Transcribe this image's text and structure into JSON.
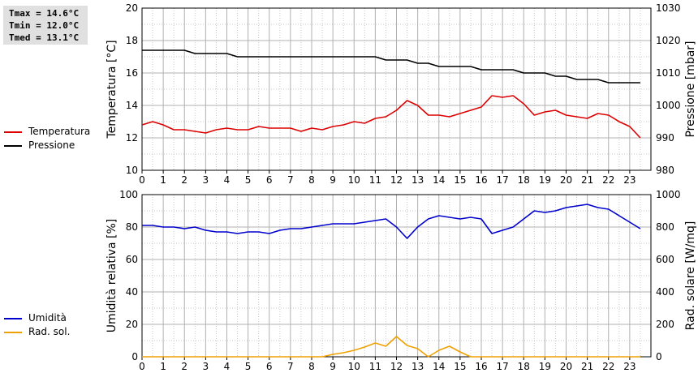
{
  "stats": {
    "tmax": "Tmax = 14.6°C",
    "tmin": "Tmin = 12.0°C",
    "tmed": "Tmed = 13.1°C"
  },
  "colors": {
    "temperatura": "#dd0000",
    "pressione": "#000000",
    "umidita": "#0000cc",
    "radiazione": "#f0a000"
  },
  "chart_data": [
    {
      "type": "line",
      "xlim": [
        0,
        24
      ],
      "xticks": [
        "0",
        "1",
        "2",
        "3",
        "4",
        "5",
        "6",
        "7",
        "8",
        "9",
        "10",
        "11",
        "12",
        "13",
        "14",
        "15",
        "16",
        "17",
        "18",
        "19",
        "20",
        "21",
        "22",
        "23"
      ],
      "ylabel": "Temperatura [°C]",
      "ylim": [
        10,
        20
      ],
      "yticks": [
        "10",
        "12",
        "14",
        "16",
        "18",
        "20"
      ],
      "y2label": "Pressione [mbar]",
      "y2lim": [
        980,
        1030
      ],
      "y2ticks": [
        "980",
        "990",
        "1000",
        "1010",
        "1020",
        "1030"
      ],
      "grid": true,
      "legend": "left",
      "series": [
        {
          "name": "Temperatura",
          "axis": "left",
          "x": [
            0,
            0.5,
            1,
            1.5,
            2,
            2.5,
            3,
            3.5,
            4,
            4.5,
            5,
            5.5,
            6,
            6.5,
            7,
            7.5,
            8,
            8.5,
            9,
            9.5,
            10,
            10.5,
            11,
            11.5,
            12,
            12.5,
            13,
            13.5,
            14,
            14.5,
            15,
            15.5,
            16,
            16.5,
            17,
            17.5,
            18,
            18.5,
            19,
            19.5,
            20,
            20.5,
            21,
            21.5,
            22,
            22.5,
            23,
            23.5
          ],
          "y": [
            12.8,
            13.0,
            12.8,
            12.5,
            12.5,
            12.4,
            12.3,
            12.5,
            12.6,
            12.5,
            12.5,
            12.7,
            12.6,
            12.6,
            12.6,
            12.4,
            12.6,
            12.5,
            12.7,
            12.8,
            13.0,
            12.9,
            13.2,
            13.3,
            13.7,
            14.3,
            14.0,
            13.4,
            13.4,
            13.3,
            13.5,
            13.7,
            13.9,
            14.6,
            14.5,
            14.6,
            14.1,
            13.4,
            13.6,
            13.7,
            13.4,
            13.3,
            13.2,
            13.5,
            13.4,
            13.0,
            12.7,
            12.0
          ]
        },
        {
          "name": "Pressione",
          "axis": "right",
          "x": [
            0,
            2,
            2.5,
            4,
            4.5,
            11,
            11.5,
            12.5,
            13,
            13.5,
            14,
            15.5,
            16,
            17.5,
            18,
            19,
            19.5,
            20,
            20.5,
            21.5,
            22,
            23.5
          ],
          "y": [
            1017,
            1017,
            1016,
            1016,
            1015,
            1015,
            1014,
            1014,
            1013,
            1013,
            1012,
            1012,
            1011,
            1011,
            1010,
            1010,
            1009,
            1009,
            1008,
            1008,
            1007,
            1007
          ]
        }
      ]
    },
    {
      "type": "line",
      "xlim": [
        0,
        24
      ],
      "xticks": [
        "0",
        "1",
        "2",
        "3",
        "4",
        "5",
        "6",
        "7",
        "8",
        "9",
        "10",
        "11",
        "12",
        "13",
        "14",
        "15",
        "16",
        "17",
        "18",
        "19",
        "20",
        "21",
        "22",
        "23"
      ],
      "ylabel": "Umidità relativa [%]",
      "ylim": [
        0,
        100
      ],
      "yticks": [
        "0",
        "20",
        "40",
        "60",
        "80",
        "100"
      ],
      "y2label": "Rad. solare [W/mq]",
      "y2lim": [
        0,
        1000
      ],
      "y2ticks": [
        "0",
        "200",
        "400",
        "600",
        "800",
        "1000"
      ],
      "grid": true,
      "legend": "left",
      "series": [
        {
          "name": "Umidità",
          "axis": "left",
          "x": [
            0,
            0.5,
            1,
            1.5,
            2,
            2.5,
            3,
            3.5,
            4,
            4.5,
            5,
            5.5,
            6,
            6.5,
            7,
            7.5,
            8,
            8.5,
            9,
            9.5,
            10,
            10.5,
            11,
            11.5,
            12,
            12.5,
            13,
            13.5,
            14,
            14.5,
            15,
            15.5,
            16,
            16.5,
            17,
            17.5,
            18,
            18.5,
            19,
            19.5,
            20,
            20.5,
            21,
            21.5,
            22,
            22.5,
            23,
            23.5
          ],
          "y": [
            81,
            81,
            80,
            80,
            79,
            80,
            78,
            77,
            77,
            76,
            77,
            77,
            76,
            78,
            79,
            79,
            80,
            81,
            82,
            82,
            82,
            83,
            84,
            85,
            80,
            73,
            80,
            85,
            87,
            86,
            85,
            86,
            85,
            76,
            78,
            80,
            85,
            90,
            89,
            90,
            92,
            93,
            94,
            92,
            91,
            87,
            83,
            79
          ]
        },
        {
          "name": "Rad. sol.",
          "axis": "right",
          "x": [
            0,
            1,
            2,
            3,
            4,
            5,
            6,
            7,
            8,
            8.5,
            9,
            9.5,
            10,
            10.5,
            11,
            11.5,
            12,
            12.5,
            13,
            13.5,
            14,
            14.5,
            15,
            15.5,
            16,
            17,
            18,
            19,
            20,
            21,
            22,
            23,
            23.5
          ],
          "y": [
            0,
            0,
            0,
            0,
            0,
            0,
            0,
            0,
            0,
            0,
            15,
            25,
            40,
            60,
            85,
            65,
            125,
            70,
            50,
            0,
            40,
            65,
            30,
            0,
            0,
            0,
            0,
            0,
            0,
            0,
            0,
            0,
            0
          ]
        }
      ]
    }
  ]
}
